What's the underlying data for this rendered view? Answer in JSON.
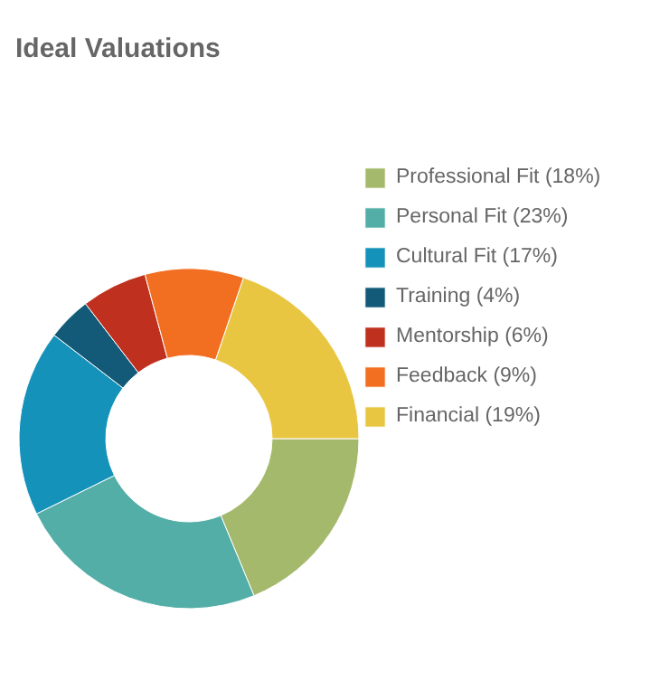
{
  "chart_data": {
    "type": "donut",
    "title": "Ideal Valuations",
    "categories": [
      "Professional Fit (18%)",
      "Personal Fit (23%)",
      "Cultural Fit (17%)",
      "Training (4%)",
      "Mentorship (6%)",
      "Feedback (9%)",
      "Financial (19%)"
    ],
    "values": [
      18,
      23,
      17,
      4,
      6,
      9,
      19
    ],
    "colors": [
      "#a5b96d",
      "#52aea6",
      "#1592ba",
      "#135a78",
      "#c0301f",
      "#f26f21",
      "#e9c642"
    ],
    "legend": "top right"
  }
}
